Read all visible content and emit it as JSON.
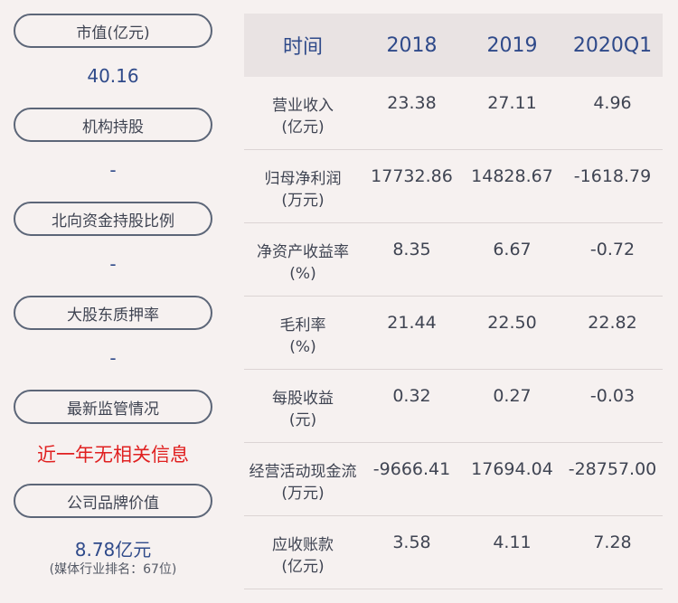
{
  "left": {
    "market_cap_label": "市值(亿元)",
    "market_cap_value": "40.16",
    "institution_label": "机构持股",
    "institution_value": "-",
    "northbound_label": "北向资金持股比例",
    "northbound_value": "-",
    "pledge_label": "大股东质押率",
    "pledge_value": "-",
    "regulation_label": "最新监管情况",
    "regulation_value": "近一年无相关信息",
    "brand_label": "公司品牌价值",
    "brand_value": "8.78亿元",
    "brand_rank": "(媒体行业排名：67位)"
  },
  "table": {
    "headers": [
      "时间",
      "2018",
      "2019",
      "2020Q1"
    ],
    "rows": [
      {
        "label1": "营业收入",
        "label2": "(亿元)",
        "values": [
          "23.38",
          "27.11",
          "4.96"
        ]
      },
      {
        "label1": "归母净利润",
        "label2": "(万元)",
        "values": [
          "17732.86",
          "14828.67",
          "-1618.79"
        ]
      },
      {
        "label1": "净资产收益率",
        "label2": "(%)",
        "values": [
          "8.35",
          "6.67",
          "-0.72"
        ]
      },
      {
        "label1": "毛利率",
        "label2": "(%)",
        "values": [
          "21.44",
          "22.50",
          "22.82"
        ]
      },
      {
        "label1": "每股收益",
        "label2": "(元)",
        "values": [
          "0.32",
          "0.27",
          "-0.03"
        ]
      },
      {
        "label1": "经营活动现金流",
        "label2": "(万元)",
        "values": [
          "-9666.41",
          "17694.04",
          "-28757.00"
        ]
      },
      {
        "label1": "应收账款",
        "label2": "(亿元)",
        "values": [
          "3.58",
          "4.11",
          "7.28"
        ]
      }
    ]
  },
  "colors": {
    "background": "#f6f1f0",
    "value_blue": "#2f4a8a",
    "alert_red": "#e02020",
    "pill_border": "#5c6678",
    "header_bg": "#e9e3e3"
  }
}
